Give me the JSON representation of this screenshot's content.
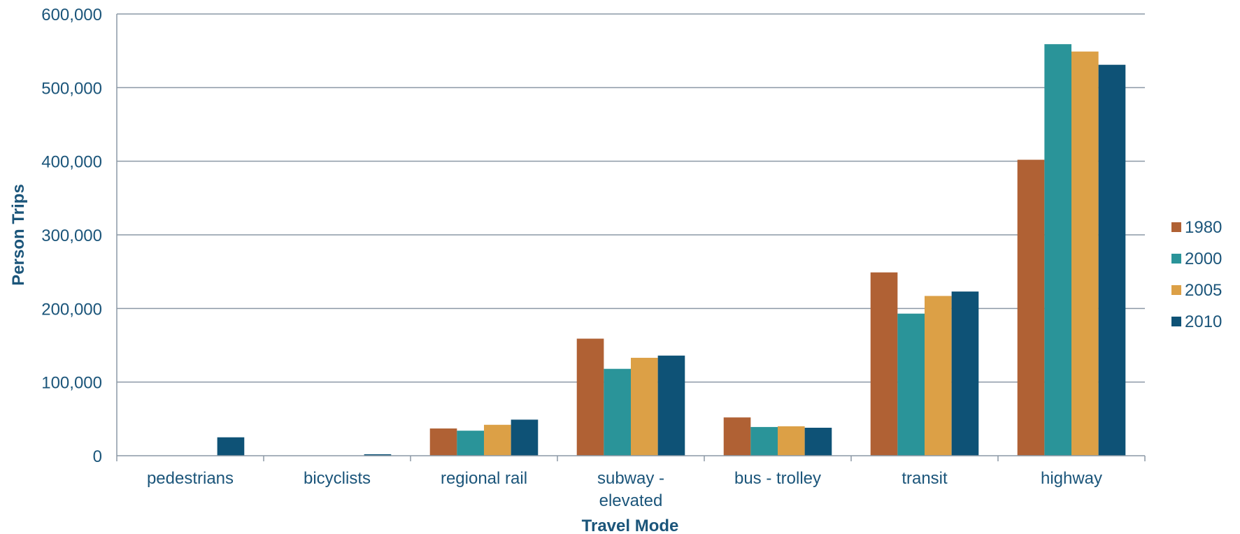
{
  "chart_data": {
    "type": "bar",
    "title": "",
    "xlabel": "Travel Mode",
    "ylabel": "Person Trips",
    "categories": [
      [
        "pedestrians"
      ],
      [
        "bicyclists"
      ],
      [
        "regional rail"
      ],
      [
        "subway -",
        "elevated"
      ],
      [
        "bus - trolley"
      ],
      [
        "transit"
      ],
      [
        "highway"
      ]
    ],
    "series": [
      {
        "name": "1980",
        "color": "#b06134",
        "values": [
          0,
          0,
          37000,
          159000,
          52000,
          249000,
          402000
        ]
      },
      {
        "name": "2000",
        "color": "#2a9499",
        "values": [
          0,
          0,
          34000,
          118000,
          39000,
          193000,
          559000
        ]
      },
      {
        "name": "2005",
        "color": "#dca046",
        "values": [
          0,
          0,
          42000,
          133000,
          40000,
          217000,
          549000
        ]
      },
      {
        "name": "2010",
        "color": "#0e5276",
        "values": [
          25000,
          2000,
          49000,
          136000,
          38000,
          223000,
          531000
        ]
      }
    ],
    "ylim": [
      0,
      600000
    ],
    "yticks": [
      0,
      100000,
      200000,
      300000,
      400000,
      500000,
      600000
    ],
    "ytick_labels": [
      "0",
      "100,000",
      "200,000",
      "300,000",
      "400,000",
      "500,000",
      "600,000"
    ],
    "grid": true,
    "legend": "right"
  }
}
